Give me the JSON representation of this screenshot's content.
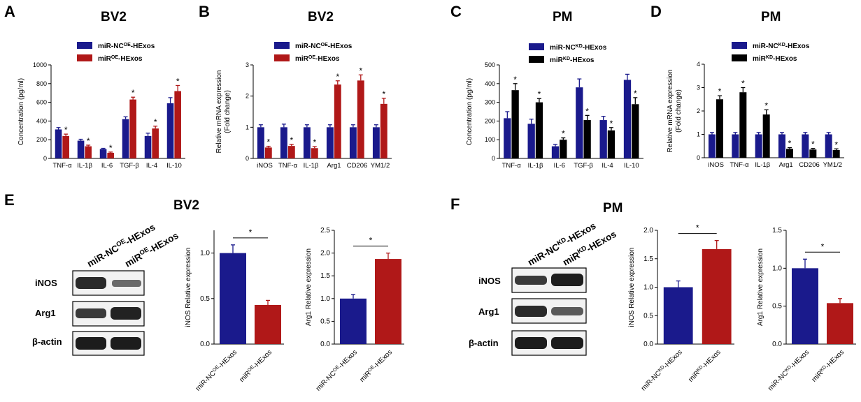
{
  "colors": {
    "blue": "#1a1a8c",
    "red": "#b01818",
    "black": "#000000"
  },
  "panels": {
    "A": {
      "letter": "A",
      "title": "BV2"
    },
    "B": {
      "letter": "B",
      "title": "BV2"
    },
    "C": {
      "letter": "C",
      "title": "PM"
    },
    "D": {
      "letter": "D",
      "title": "PM"
    },
    "E": {
      "letter": "E",
      "title": "BV2"
    },
    "F": {
      "letter": "F",
      "title": "PM"
    }
  },
  "blot_E": {
    "lanes": [
      "miR-NC^{OE}-HExos",
      "miR^{OE}-HExos"
    ],
    "rows": [
      "iNOS",
      "Arg1",
      "β-actin"
    ]
  },
  "blot_F": {
    "lanes": [
      "miR-NC^{KD}-HExos",
      "miR^{KD}-HExos"
    ],
    "rows": [
      "iNOS",
      "Arg1",
      "β-actin"
    ]
  },
  "chart_data": [
    {
      "id": "A",
      "type": "bar",
      "title": "BV2",
      "categories": [
        "TNF-α",
        "IL-1β",
        "IL-6",
        "TGF-β",
        "IL-4",
        "IL-10"
      ],
      "ylabel": "Concentration (pg/ml)",
      "xlabel": "",
      "ylim": [
        0,
        1000
      ],
      "yticks": [
        0,
        200,
        400,
        600,
        800,
        1000
      ],
      "legend_position": "top-left",
      "series": [
        {
          "name": "miR-NC^{OE}-HExos",
          "color": "#1a1a8c",
          "values": [
            310,
            190,
            100,
            420,
            240,
            590
          ],
          "errors": [
            20,
            15,
            8,
            25,
            30,
            60
          ],
          "stars": [
            false,
            false,
            false,
            false,
            false,
            false
          ]
        },
        {
          "name": "miR^{OE}-HExos",
          "color": "#b01818",
          "values": [
            240,
            130,
            60,
            630,
            320,
            720
          ],
          "errors": [
            20,
            12,
            8,
            25,
            25,
            60
          ],
          "stars": [
            true,
            true,
            true,
            true,
            true,
            true
          ]
        }
      ]
    },
    {
      "id": "B",
      "type": "bar",
      "title": "BV2",
      "categories": [
        "iNOS",
        "TNF-α",
        "IL-1β",
        "Arg1",
        "CD206",
        "YM1/2"
      ],
      "ylabel": "Relative mRNA expression (Fold change)",
      "xlabel": "",
      "ylim": [
        0,
        3
      ],
      "yticks": [
        0,
        1,
        2,
        3
      ],
      "legend_position": "top-left",
      "series": [
        {
          "name": "miR-NC^{OE}-HExos",
          "color": "#1a1a8c",
          "values": [
            1.0,
            1.0,
            1.0,
            1.0,
            1.0,
            1.0
          ],
          "errors": [
            0.08,
            0.1,
            0.08,
            0.08,
            0.08,
            0.08
          ],
          "stars": [
            false,
            false,
            false,
            false,
            false,
            false
          ]
        },
        {
          "name": "miR^{OE}-HExos",
          "color": "#b01818",
          "values": [
            0.35,
            0.4,
            0.33,
            2.37,
            2.5,
            1.75
          ],
          "errors": [
            0.04,
            0.05,
            0.05,
            0.12,
            0.18,
            0.18
          ],
          "stars": [
            true,
            true,
            true,
            true,
            true,
            true
          ]
        }
      ]
    },
    {
      "id": "C",
      "type": "bar",
      "title": "PM",
      "categories": [
        "TNF-α",
        "IL-1β",
        "IL-6",
        "TGF-β",
        "IL-4",
        "IL-10"
      ],
      "ylabel": "Concentration (pg/ml)",
      "xlabel": "",
      "ylim": [
        0,
        500
      ],
      "yticks": [
        0,
        100,
        200,
        300,
        400,
        500
      ],
      "legend_position": "top-left",
      "series": [
        {
          "name": "miR-NC^{KD}-HExos",
          "color": "#1a1a8c",
          "values": [
            215,
            185,
            65,
            380,
            205,
            420
          ],
          "errors": [
            35,
            25,
            10,
            45,
            20,
            30
          ],
          "stars": [
            false,
            false,
            false,
            false,
            false,
            false
          ]
        },
        {
          "name": "miR^{KD}-HExos",
          "color": "#000000",
          "values": [
            365,
            300,
            100,
            205,
            150,
            290
          ],
          "errors": [
            35,
            20,
            10,
            25,
            15,
            35
          ],
          "stars": [
            true,
            true,
            true,
            true,
            true,
            true
          ]
        }
      ]
    },
    {
      "id": "D",
      "type": "bar",
      "title": "PM",
      "categories": [
        "iNOS",
        "TNF-α",
        "IL-1β",
        "Arg1",
        "CD206",
        "YM1/2"
      ],
      "ylabel": "Relative mRNA expression (Fold change)",
      "xlabel": "",
      "ylim": [
        0,
        4
      ],
      "yticks": [
        0,
        1,
        2,
        3,
        4
      ],
      "legend_position": "top-left",
      "series": [
        {
          "name": "miR-NC^{KD}-HExos",
          "color": "#1a1a8c",
          "values": [
            1.0,
            1.0,
            1.0,
            1.0,
            1.0,
            1.0
          ],
          "errors": [
            0.08,
            0.08,
            0.08,
            0.08,
            0.08,
            0.08
          ],
          "stars": [
            false,
            false,
            false,
            false,
            false,
            false
          ]
        },
        {
          "name": "miR^{KD}-HExos",
          "color": "#000000",
          "values": [
            2.5,
            2.8,
            1.85,
            0.38,
            0.35,
            0.33
          ],
          "errors": [
            0.15,
            0.2,
            0.2,
            0.05,
            0.05,
            0.05
          ],
          "stars": [
            true,
            true,
            true,
            true,
            true,
            true
          ]
        }
      ]
    },
    {
      "id": "E1",
      "type": "bar",
      "title": "",
      "categories": [
        "miR-NC^{OE}-HExos",
        "miR^{OE}-HExos"
      ],
      "ylabel": "iNOS Relative expression",
      "xlabel": "",
      "ylim": [
        0,
        1.25
      ],
      "yticks": [
        0.0,
        0.5,
        1.0
      ],
      "ytick_labels": [
        "0.0",
        "0.5",
        "1.0"
      ],
      "colors": [
        "#1a1a8c",
        "#b01818"
      ],
      "values": [
        1.0,
        0.43
      ],
      "errors": [
        0.09,
        0.05
      ],
      "significance": "*"
    },
    {
      "id": "E2",
      "type": "bar",
      "title": "",
      "categories": [
        "miR-NC^{OE}-HExos",
        "miR^{OE}-HExos"
      ],
      "ylabel": "Arg1 Relative expression",
      "xlabel": "",
      "ylim": [
        0,
        2.5
      ],
      "yticks": [
        0.0,
        0.5,
        1.0,
        1.5,
        2.0,
        2.5
      ],
      "ytick_labels": [
        "0.0",
        "0.5",
        "1.0",
        "1.5",
        "2.0",
        "2.5"
      ],
      "colors": [
        "#1a1a8c",
        "#b01818"
      ],
      "values": [
        1.0,
        1.87
      ],
      "errors": [
        0.09,
        0.13
      ],
      "significance": "*"
    },
    {
      "id": "F1",
      "type": "bar",
      "title": "",
      "categories": [
        "miR-NC^{KD}-HExos",
        "miR^{KD}-HExos"
      ],
      "ylabel": "iNOS Relative expression",
      "xlabel": "",
      "ylim": [
        0,
        2.0
      ],
      "yticks": [
        0.0,
        0.5,
        1.0,
        1.5,
        2.0
      ],
      "ytick_labels": [
        "0.0",
        "0.5",
        "1.0",
        "1.5",
        "2.0"
      ],
      "colors": [
        "#1a1a8c",
        "#b01818"
      ],
      "values": [
        1.0,
        1.67
      ],
      "errors": [
        0.11,
        0.15
      ],
      "significance": "*"
    },
    {
      "id": "F2",
      "type": "bar",
      "title": "",
      "categories": [
        "miR-NC^{KD}-HExos",
        "miR^{KD}-HExos"
      ],
      "ylabel": "Arg1 Relative expression",
      "xlabel": "",
      "ylim": [
        0,
        1.5
      ],
      "yticks": [
        0.0,
        0.5,
        1.0,
        1.5
      ],
      "ytick_labels": [
        "0.0",
        "0.5",
        "1.0",
        "1.5"
      ],
      "colors": [
        "#1a1a8c",
        "#b01818"
      ],
      "values": [
        1.0,
        0.54
      ],
      "errors": [
        0.12,
        0.06
      ],
      "significance": "*"
    }
  ]
}
